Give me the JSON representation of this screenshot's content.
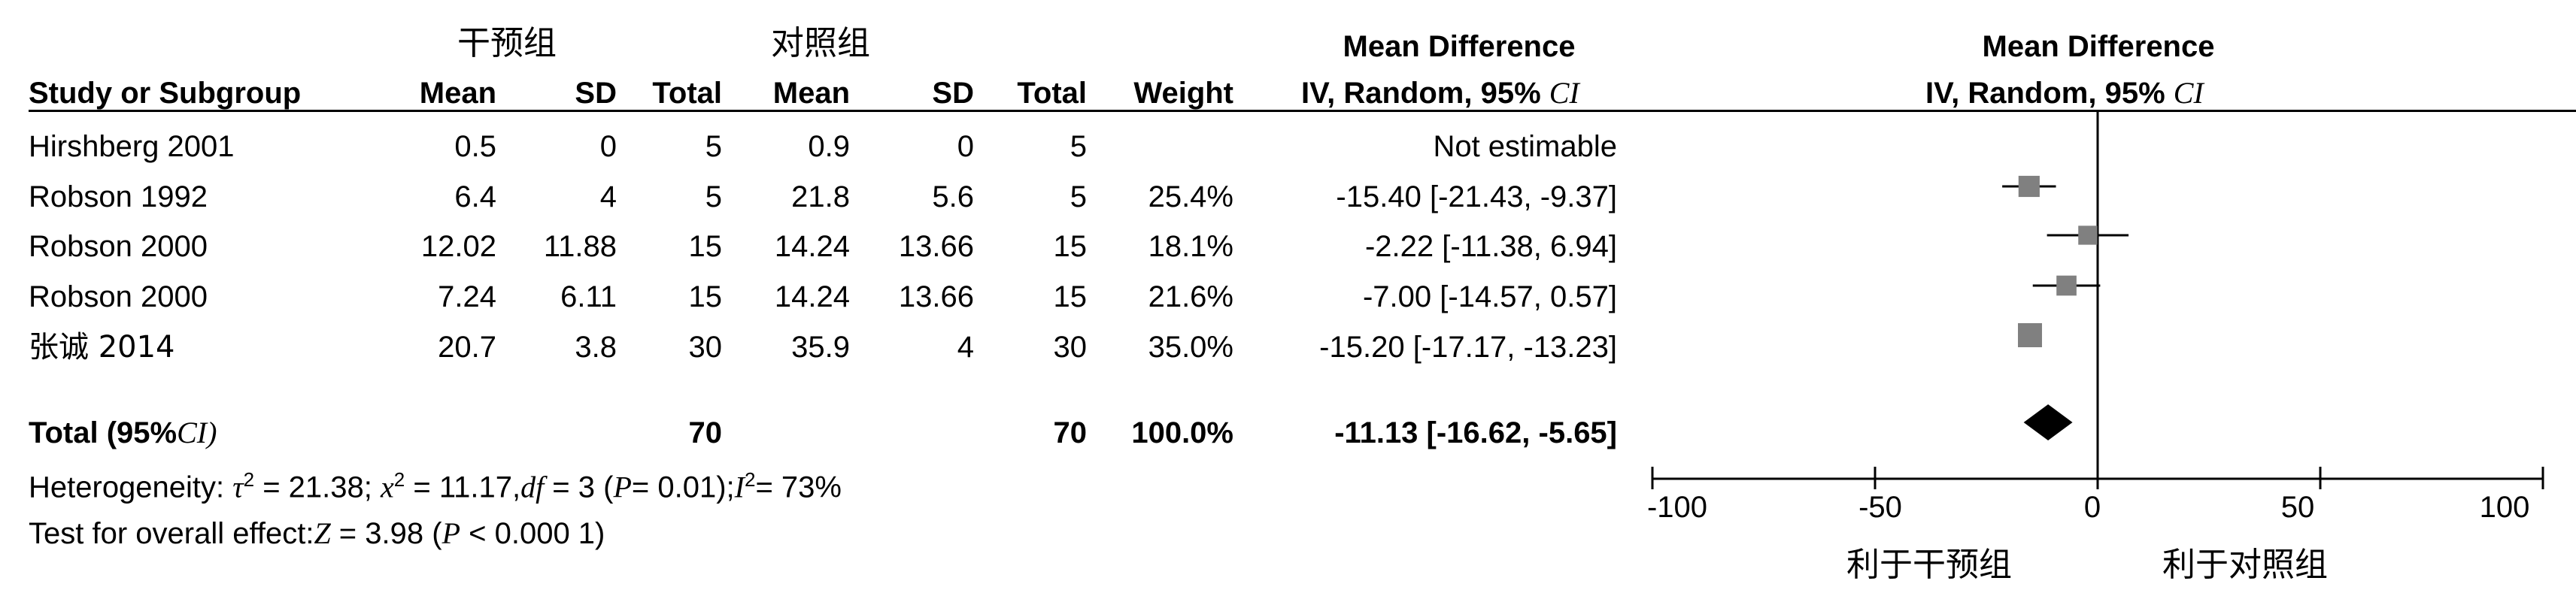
{
  "table": {
    "group_headers": {
      "intervention": "干预组",
      "control": "对照组"
    },
    "md_header_left": {
      "line1": "Mean Difference",
      "line2": "IV, Random, 95%",
      "ci": "CI"
    },
    "md_header_right": {
      "line1": "Mean Difference",
      "line2": "IV, Random, 95%",
      "ci": "CI"
    },
    "columns": [
      "Study or Subgroup",
      "Mean",
      "SD",
      "Total",
      "Mean",
      "SD",
      "Total",
      "Weight"
    ],
    "rows": [
      {
        "study": "Hirshberg 2001",
        "m1": "0.5",
        "sd1": "0",
        "n1": "5",
        "m2": "0.9",
        "sd2": "0",
        "n2": "5",
        "weight": "",
        "md": "Not estimable"
      },
      {
        "study": "Robson 1992",
        "m1": "6.4",
        "sd1": "4",
        "n1": "5",
        "m2": "21.8",
        "sd2": "5.6",
        "n2": "5",
        "weight": "25.4%",
        "md": "-15.40 [-21.43, -9.37]"
      },
      {
        "study": "Robson 2000",
        "m1": "12.02",
        "sd1": "11.88",
        "n1": "15",
        "m2": "14.24",
        "sd2": "13.66",
        "n2": "15",
        "weight": "18.1%",
        "md": "-2.22 [-11.38, 6.94]"
      },
      {
        "study": "Robson 2000",
        "m1": "7.24",
        "sd1": "6.11",
        "n1": "15",
        "m2": "14.24",
        "sd2": "13.66",
        "n2": "15",
        "weight": "21.6%",
        "md": "-7.00 [-14.57, 0.57]"
      },
      {
        "study": "张诚 2014",
        "m1": "20.7",
        "sd1": "3.8",
        "n1": "30",
        "m2": "35.9",
        "sd2": "4",
        "n2": "30",
        "weight": "35.0%",
        "md": "-15.20 [-17.17, -13.23]"
      }
    ],
    "total": {
      "label": "Total (95%",
      "label_ci": "CI)",
      "n1": "70",
      "n2": "70",
      "weight": "100.0%",
      "md": "-11.13 [-16.62, -5.65]"
    },
    "heterogeneity": {
      "prefix": "Heterogeneity:",
      "tau": "τ",
      "tau_val": " = 21.38;",
      "chi": "x",
      "chi_val": " = 11.17,",
      "df": "df",
      "df_val": " = 3 (",
      "p": "P",
      "p_val": "= 0.01);",
      "i": "I",
      "i_val": "= 73%",
      "sup": "2"
    },
    "overall": {
      "prefix": "Test for overall effect:",
      "z": "Z",
      "z_val": " = 3.98 (",
      "p": "P",
      "p_val": " < 0.000 1)"
    }
  },
  "chart_data": {
    "type": "scatter",
    "subtype": "forest-plot",
    "xlim": [
      -100,
      100
    ],
    "x_ticks": [
      -100,
      -50,
      0,
      50,
      100
    ],
    "x_tick_labels": [
      "-100",
      "-50",
      "0",
      "50",
      "100"
    ],
    "favours_left": "利于干预组",
    "favours_right": "利于对照组",
    "studies": [
      {
        "label": "Robson 1992",
        "md": -15.4,
        "lower": -21.43,
        "upper": -9.37,
        "weight": 25.4
      },
      {
        "label": "Robson 2000",
        "md": -2.22,
        "lower": -11.38,
        "upper": 6.94,
        "weight": 18.1
      },
      {
        "label": "Robson 2000",
        "md": -7.0,
        "lower": -14.57,
        "upper": 0.57,
        "weight": 21.6
      },
      {
        "label": "张诚 2014",
        "md": -15.2,
        "lower": -17.17,
        "upper": -13.23,
        "weight": 35.0
      }
    ],
    "pooled": {
      "md": -11.13,
      "lower": -16.62,
      "upper": -5.65
    },
    "colors": {
      "square": "#808080",
      "line": "#000000",
      "diamond": "#000000"
    }
  }
}
